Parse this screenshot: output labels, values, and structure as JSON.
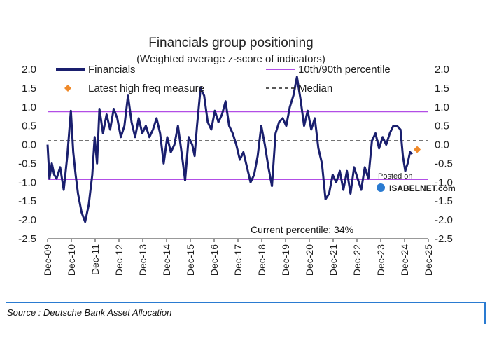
{
  "chart_data": {
    "type": "line",
    "title": "Financials group positioning",
    "subtitle": "(Weighted average z-score of indicators)",
    "ylim": [
      -2.5,
      2.0
    ],
    "yticks": [
      "2.0",
      "1.5",
      "1.0",
      "0.5",
      "0.0",
      "-0.5",
      "-1.0",
      "-1.5",
      "-2.0",
      "-2.5"
    ],
    "xlim": [
      2009.92,
      2025.92
    ],
    "xticks": [
      "Dec-09",
      "Dec-10",
      "Dec-11",
      "Dec-12",
      "Dec-13",
      "Dec-14",
      "Dec-15",
      "Dec-16",
      "Dec-17",
      "Dec-18",
      "Dec-19",
      "Dec-20",
      "Dec-21",
      "Dec-22",
      "Dec-23",
      "Dec-24",
      "Dec-25"
    ],
    "series": [
      {
        "name": "Financials",
        "color": "#1a1f6e",
        "x": [
          2009.92,
          2010.0,
          2010.1,
          2010.2,
          2010.3,
          2010.45,
          2010.6,
          2010.75,
          2010.9,
          2011.0,
          2011.1,
          2011.2,
          2011.35,
          2011.5,
          2011.65,
          2011.8,
          2011.9,
          2012.0,
          2012.1,
          2012.25,
          2012.4,
          2012.55,
          2012.7,
          2012.85,
          2013.0,
          2013.15,
          2013.3,
          2013.45,
          2013.6,
          2013.75,
          2013.9,
          2014.05,
          2014.2,
          2014.35,
          2014.5,
          2014.65,
          2014.8,
          2014.95,
          2015.1,
          2015.25,
          2015.4,
          2015.55,
          2015.7,
          2015.85,
          2016.0,
          2016.1,
          2016.2,
          2016.35,
          2016.5,
          2016.65,
          2016.8,
          2016.95,
          2017.1,
          2017.25,
          2017.4,
          2017.55,
          2017.7,
          2017.85,
          2018.0,
          2018.15,
          2018.3,
          2018.45,
          2018.6,
          2018.75,
          2018.9,
          2019.05,
          2019.2,
          2019.35,
          2019.5,
          2019.65,
          2019.8,
          2019.95,
          2020.1,
          2020.25,
          2020.4,
          2020.55,
          2020.7,
          2020.85,
          2021.0,
          2021.15,
          2021.3,
          2021.45,
          2021.6,
          2021.75,
          2021.9,
          2022.05,
          2022.2,
          2022.35,
          2022.5,
          2022.65,
          2022.8,
          2022.95,
          2023.1,
          2023.25,
          2023.4,
          2023.55,
          2023.7,
          2023.85,
          2024.0,
          2024.15,
          2024.3,
          2024.45,
          2024.6,
          2024.75,
          2024.85,
          2024.95,
          2025.05,
          2025.15,
          2025.25
        ],
        "values": [
          0.0,
          -0.9,
          -0.5,
          -0.8,
          -0.9,
          -0.6,
          -1.2,
          -0.3,
          0.9,
          -0.2,
          -0.8,
          -1.3,
          -1.8,
          -2.05,
          -1.6,
          -0.8,
          0.2,
          -0.5,
          0.95,
          0.3,
          0.8,
          0.4,
          0.95,
          0.7,
          0.2,
          0.5,
          1.3,
          0.6,
          0.2,
          0.7,
          0.3,
          0.5,
          0.2,
          0.4,
          0.7,
          0.3,
          -0.5,
          0.2,
          -0.2,
          0.0,
          0.5,
          -0.2,
          -0.95,
          0.2,
          0.0,
          -0.3,
          0.5,
          1.5,
          1.3,
          0.6,
          0.4,
          0.9,
          0.6,
          0.8,
          1.15,
          0.5,
          0.3,
          0.0,
          -0.4,
          -0.2,
          -0.6,
          -1.0,
          -0.8,
          -0.3,
          0.5,
          0.0,
          -0.6,
          -1.1,
          0.3,
          0.6,
          0.7,
          0.5,
          1.0,
          1.3,
          1.8,
          1.2,
          0.5,
          0.9,
          0.4,
          0.7,
          -0.1,
          -0.5,
          -1.45,
          -1.3,
          -0.8,
          -1.0,
          -0.7,
          -1.2,
          -0.7,
          -1.3,
          -0.6,
          -0.9,
          -1.2,
          -0.6,
          -0.9,
          0.1,
          0.3,
          -0.1,
          0.2,
          0.0,
          0.3,
          0.5,
          0.5,
          0.4,
          -0.3,
          -0.7,
          -0.5,
          -0.2,
          -0.25
        ]
      }
    ],
    "percentile_10th": -0.92,
    "percentile_90th": 0.88,
    "median": 0.1,
    "latest_high_freq": {
      "x": 2025.45,
      "y": -0.13
    },
    "legend": {
      "financials": "Financials",
      "percentile": "10th/90th percentile",
      "high_freq": "Latest high freq measure",
      "median": "Median"
    },
    "annotation": "Current percentile: 34%",
    "colors": {
      "series": "#1a1f6e",
      "percentile": "#b24ee6",
      "median": "#222222",
      "marker": "#f08a2a"
    }
  },
  "source": "Source : Deutsche Bank Asset Allocation",
  "watermark": {
    "posted": "Posted on",
    "brand": "ISABELNET.com"
  }
}
